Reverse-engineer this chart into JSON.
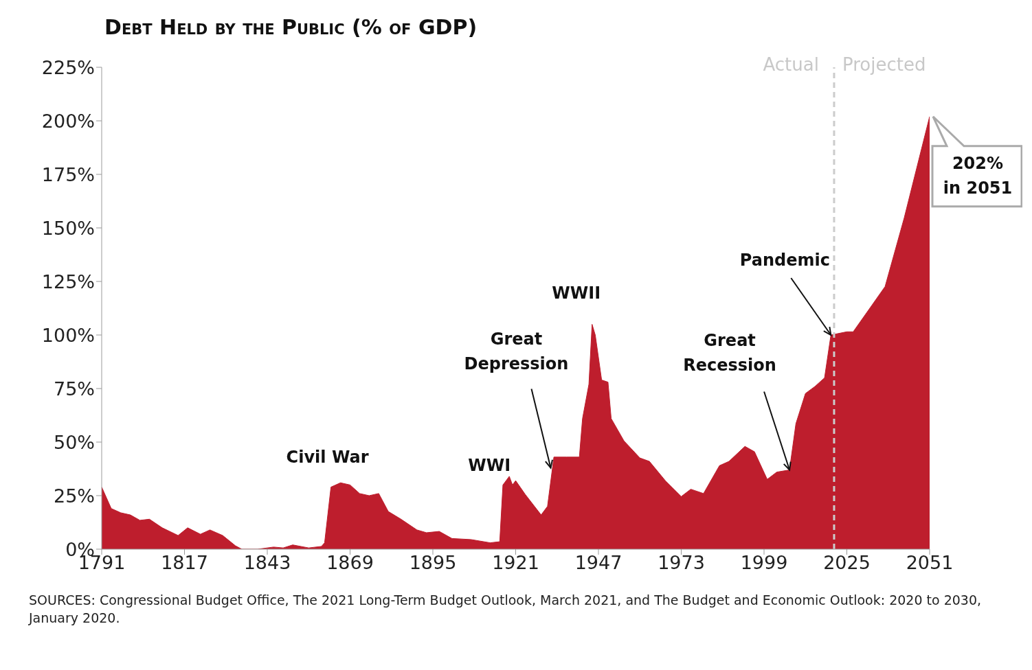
{
  "chart_data": {
    "type": "area",
    "title": "Debt Held by the Public (% of GDP)",
    "x": [
      1791,
      1794,
      1797,
      1800,
      1803,
      1806,
      1810,
      1815,
      1818,
      1822,
      1825,
      1829,
      1833,
      1835,
      1840,
      1845,
      1848,
      1851,
      1856,
      1860,
      1861,
      1863,
      1866,
      1869,
      1872,
      1875,
      1878,
      1881,
      1885,
      1890,
      1893,
      1897,
      1901,
      1907,
      1913,
      1916,
      1917,
      1919,
      1920,
      1921,
      1924,
      1929,
      1931,
      1933,
      1937,
      1941,
      1942,
      1944,
      1945,
      1946,
      1948,
      1950,
      1951,
      1955,
      1960,
      1963,
      1968,
      1973,
      1976,
      1980,
      1985,
      1988,
      1993,
      1996,
      2000,
      2003,
      2007,
      2009,
      2012,
      2015,
      2018,
      2020,
      2025,
      2027,
      2037,
      2043,
      2051
    ],
    "series": [
      {
        "color": "#be1e2d",
        "values": [
          29,
          19,
          17,
          16,
          13.5,
          14,
          10,
          6.4,
          10,
          7,
          9,
          6.4,
          1.6,
          0,
          0,
          1,
          0.6,
          2,
          0.6,
          1.3,
          3,
          29,
          31,
          30,
          26,
          25,
          26,
          17.6,
          14,
          9,
          7.7,
          8.3,
          5,
          4.5,
          3,
          3.5,
          30,
          34,
          30,
          32,
          25.6,
          16,
          20,
          43,
          43,
          43,
          61,
          77,
          105,
          100,
          79,
          78,
          61,
          50.6,
          42.6,
          41,
          32,
          24.6,
          28,
          26,
          39,
          41,
          48,
          45.5,
          32.6,
          36,
          37,
          58.6,
          72.7,
          76,
          80,
          100,
          101.5,
          101.5,
          122.6,
          154.6,
          202
        ]
      }
    ],
    "xlim": [
      1791,
      2051
    ],
    "xticks": [
      1791,
      1817,
      1843,
      1869,
      1895,
      1921,
      1947,
      1973,
      1999,
      2025,
      2051
    ],
    "ylim": [
      0,
      225
    ],
    "yticks": [
      {
        "value": 0,
        "label": "0%"
      },
      {
        "value": 25,
        "label": "25%"
      },
      {
        "value": 50,
        "label": "50%"
      },
      {
        "value": 75,
        "label": "75%"
      },
      {
        "value": 100,
        "label": "100%"
      },
      {
        "value": 125,
        "label": "125%"
      },
      {
        "value": 150,
        "label": "150%"
      },
      {
        "value": 175,
        "label": "175%"
      },
      {
        "value": 200,
        "label": "200%"
      },
      {
        "value": 225,
        "label": "225%"
      }
    ],
    "ref_lines": [
      {
        "axis": "x",
        "value": 2021,
        "color": "#cccccc",
        "line_style": "dashed"
      }
    ],
    "annotations": [
      {
        "text": "Civil War",
        "x": 1866,
        "y": 31
      },
      {
        "text": "WWI",
        "x": 1919,
        "y": 34
      },
      {
        "text": "Great Depression",
        "x": 1932,
        "y": 38
      },
      {
        "text": "WWII",
        "x": 1945,
        "y": 105
      },
      {
        "text": "Great Recession",
        "x": 2007,
        "y": 37
      },
      {
        "text": "Pandemic",
        "x": 2020,
        "y": 100
      },
      {
        "text": "202% in 2051",
        "x": 2051,
        "y": 202
      },
      {
        "text": "Actual",
        "x": 2021,
        "y": 225
      },
      {
        "text": "Projected",
        "x": 2021,
        "y": 225
      },
      "SOURCES: Congressional Budget Office, The 2021 Long-Term Budget Outlook, March 2021, and The Budget and Economic Outlook: 2020 to 2030, January 2020."
    ]
  }
}
